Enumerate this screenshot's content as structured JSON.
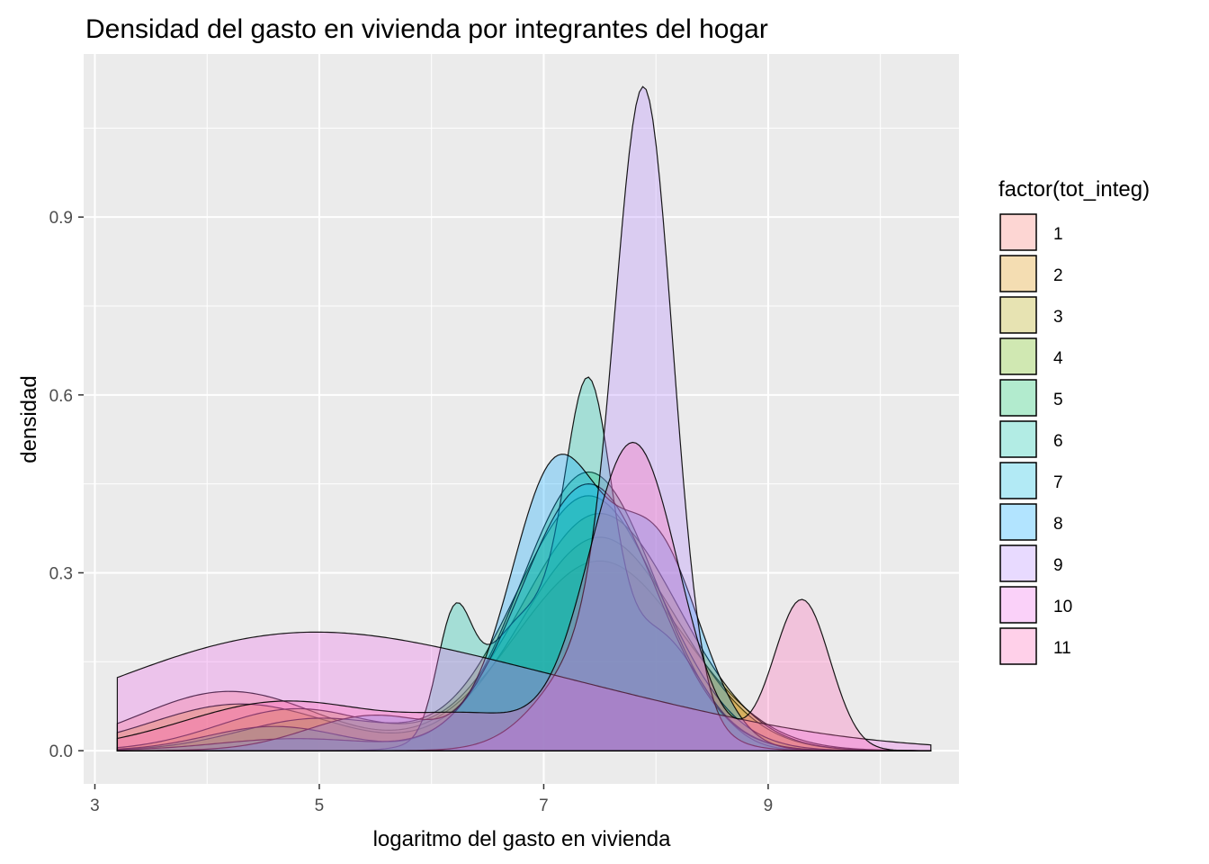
{
  "chart_data": {
    "type": "area",
    "title": "Densidad del gasto en vivienda por integrantes del hogar",
    "xlabel": "logaritmo del gasto en vivienda",
    "ylabel": "densidad",
    "xlim": [
      2.9,
      10.7
    ],
    "ylim": [
      -0.056,
      1.175
    ],
    "x_ticks": [
      3,
      5,
      7,
      9
    ],
    "x_tick_labels": [
      "3",
      "5",
      "7",
      "9"
    ],
    "x_minor_ticks": [
      4,
      6,
      8,
      10
    ],
    "y_ticks": [
      0.0,
      0.3,
      0.6,
      0.9
    ],
    "y_tick_labels": [
      "0.0",
      "0.3",
      "0.6",
      "0.9"
    ],
    "y_minor_ticks": [
      0.15,
      0.45,
      0.75,
      1.05
    ],
    "grid": true,
    "legend": {
      "title": "factor(tot_integ)",
      "position": "right"
    },
    "x_range": [
      3.2,
      10.45
    ],
    "series": [
      {
        "name": "1",
        "color": "#F8766D",
        "peaks": [
          {
            "mu": 4.2,
            "sd": 0.8,
            "w": 0.25
          },
          {
            "mu": 7.5,
            "sd": 0.75,
            "w": 0.75
          }
        ]
      },
      {
        "name": "2",
        "color": "#DB8E00",
        "peaks": [
          {
            "mu": 4.3,
            "sd": 0.8,
            "w": 0.2
          },
          {
            "mu": 7.5,
            "sd": 0.7,
            "w": 0.8
          }
        ]
      },
      {
        "name": "3",
        "color": "#AEA200",
        "peaks": [
          {
            "mu": 4.8,
            "sd": 0.7,
            "w": 0.15
          },
          {
            "mu": 7.5,
            "sd": 0.7,
            "w": 0.85
          }
        ]
      },
      {
        "name": "4",
        "color": "#64B200",
        "peaks": [
          {
            "mu": 5.0,
            "sd": 0.7,
            "w": 0.12
          },
          {
            "mu": 7.4,
            "sd": 0.65,
            "w": 0.88
          }
        ]
      },
      {
        "name": "5",
        "color": "#00BD5C",
        "peaks": [
          {
            "mu": 4.6,
            "sd": 0.6,
            "w": 0.08
          },
          {
            "mu": 7.4,
            "sd": 0.6,
            "w": 0.92
          }
        ]
      },
      {
        "name": "6",
        "color": "#00C1A7",
        "peaks": [
          {
            "mu": 6.2,
            "sd": 0.15,
            "w": 0.09
          },
          {
            "mu": 7.4,
            "sd": 0.2,
            "w": 0.3
          },
          {
            "mu": 6.9,
            "sd": 0.45,
            "w": 0.35
          },
          {
            "mu": 8.0,
            "sd": 0.4,
            "w": 0.26
          }
        ]
      },
      {
        "name": "7",
        "color": "#00BADE",
        "peaks": [
          {
            "mu": 7.4,
            "sd": 0.6,
            "w": 0.95
          },
          {
            "mu": 4.8,
            "sd": 0.7,
            "w": 0.05
          }
        ]
      },
      {
        "name": "8",
        "color": "#00A6FF",
        "peaks": [
          {
            "mu": 7.1,
            "sd": 0.4,
            "w": 0.52
          },
          {
            "mu": 8.0,
            "sd": 0.4,
            "w": 0.38
          },
          {
            "mu": 5.5,
            "sd": 0.6,
            "w": 0.1
          }
        ]
      },
      {
        "name": "9",
        "color": "#B385FF",
        "peaks": [
          {
            "mu": 7.9,
            "sd": 0.25,
            "w": 0.7
          },
          {
            "mu": 7.6,
            "sd": 0.5,
            "w": 0.3
          }
        ]
      },
      {
        "name": "10",
        "color": "#EF67EB",
        "peaks": [
          {
            "mu": 4.6,
            "sd": 1.6,
            "w": 0.7
          },
          {
            "mu": 7.2,
            "sd": 1.6,
            "w": 0.3
          }
        ]
      },
      {
        "name": "11",
        "color": "#FF63B6",
        "peaks": [
          {
            "mu": 4.7,
            "sd": 0.9,
            "w": 0.2
          },
          {
            "mu": 7.8,
            "sd": 0.4,
            "w": 0.55
          },
          {
            "mu": 9.3,
            "sd": 0.25,
            "w": 0.17
          },
          {
            "mu": 6.5,
            "sd": 0.6,
            "w": 0.08
          }
        ]
      }
    ]
  }
}
